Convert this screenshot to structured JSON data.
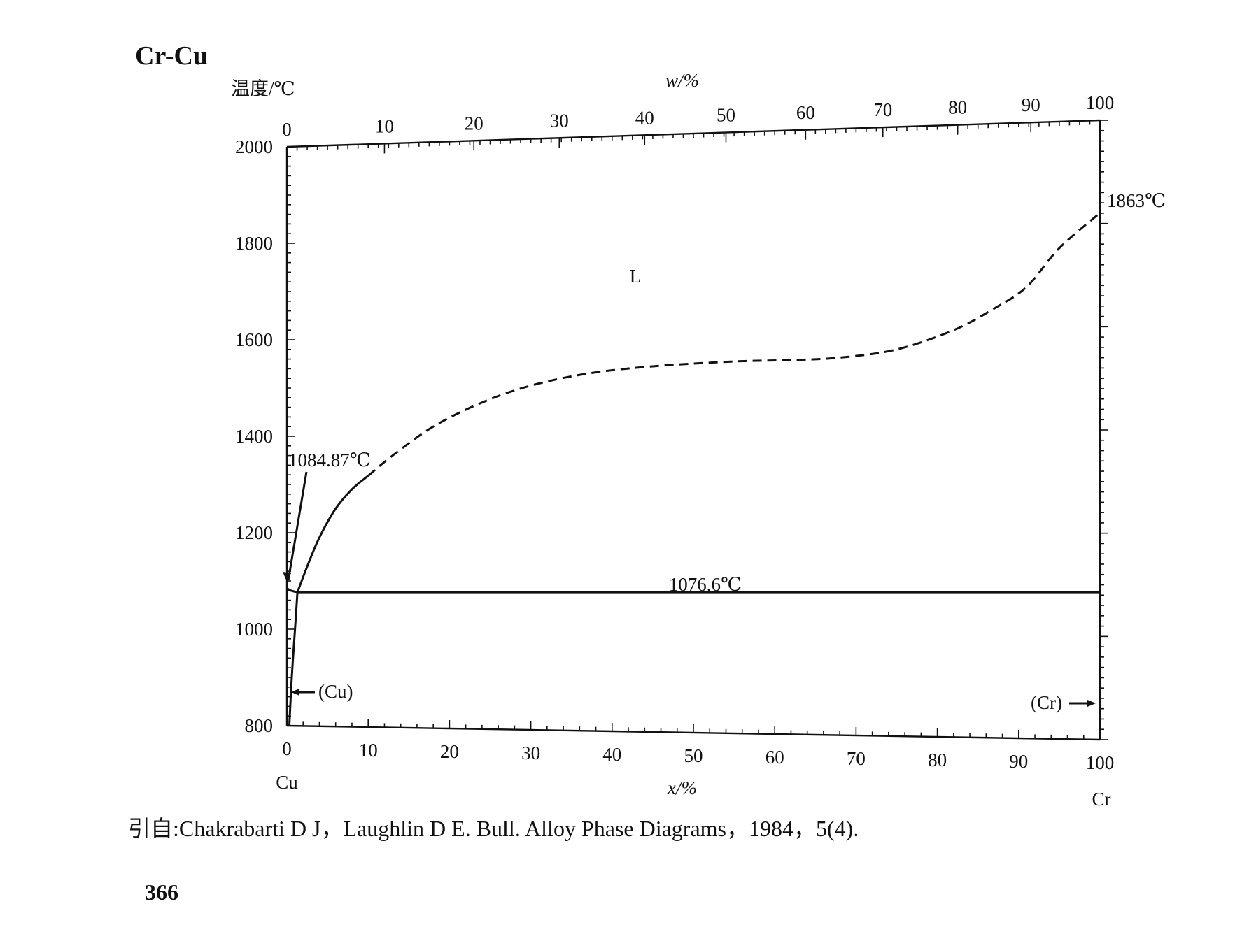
{
  "title": "Cr-Cu",
  "y_axis_label": "温度/℃",
  "top_axis_label": "w/%",
  "bottom_axis_label": "x/%",
  "left_element": "Cu",
  "right_element": "Cr",
  "phase_labels": {
    "liquid": "L",
    "cu_phase": "(Cu)",
    "cr_phase": "(Cr)"
  },
  "annotations": {
    "cu_melting": "1084.87℃",
    "eutectic": "1076.6℃",
    "cr_melting": "1863℃"
  },
  "citation": "引自:Chakrabarti D J，Laughlin D E. Bull. Alloy Phase Diagrams，1984，5(4).",
  "page_number": "366",
  "chart_data": {
    "type": "line",
    "xlabel": "x/%",
    "ylabel": "温度/℃",
    "top_xlabel": "w/%",
    "xlim": [
      0,
      100
    ],
    "ylim": [
      800,
      2000
    ],
    "x_ticks": [
      "0",
      "10",
      "20",
      "30",
      "40",
      "50",
      "60",
      "70",
      "80",
      "90",
      "100"
    ],
    "y_ticks": [
      "800",
      "1000",
      "1200",
      "1400",
      "1600",
      "1800",
      "2000"
    ],
    "top_ticks": [
      {
        "label": "0",
        "x": 0
      },
      {
        "label": "10",
        "x": 12
      },
      {
        "label": "20",
        "x": 23
      },
      {
        "label": "30",
        "x": 33.5
      },
      {
        "label": "40",
        "x": 44
      },
      {
        "label": "50",
        "x": 54
      },
      {
        "label": "60",
        "x": 63.8
      },
      {
        "label": "70",
        "x": 73.3
      },
      {
        "label": "80",
        "x": 82.5
      },
      {
        "label": "90",
        "x": 91.5
      },
      {
        "label": "100",
        "x": 100
      }
    ],
    "series": [
      {
        "style": "solid",
        "x": [
          1.3,
          2.5,
          4,
          6,
          8,
          10
        ],
        "y": [
          1076.6,
          1130,
          1190,
          1250,
          1290,
          1318
        ]
      },
      {
        "style": "dashed",
        "x": [
          10,
          13,
          18,
          24,
          30,
          37,
          45,
          55,
          62,
          68,
          75,
          82,
          87,
          91,
          95,
          100
        ],
        "y": [
          1318,
          1360,
          1420,
          1470,
          1505,
          1530,
          1545,
          1555,
          1558,
          1563,
          1580,
          1620,
          1665,
          1710,
          1790,
          1863
        ]
      },
      {
        "style": "solid",
        "x": [
          0,
          0.5,
          1.3
        ],
        "y": [
          1084.87,
          1080,
          1076.6
        ]
      },
      {
        "style": "solid",
        "x": [
          1.3,
          100
        ],
        "y": [
          1076.6,
          1076.6
        ]
      },
      {
        "style": "solid",
        "x": [
          1.3,
          1,
          0.6,
          0.3
        ],
        "y": [
          1076.6,
          1000,
          900,
          800
        ]
      }
    ]
  }
}
